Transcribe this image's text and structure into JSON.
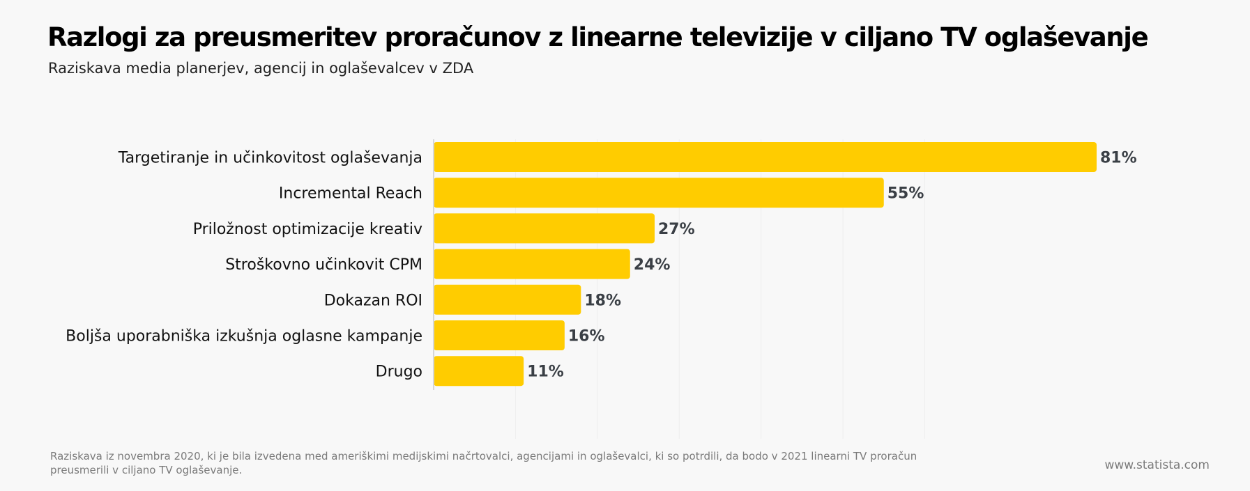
{
  "header": {
    "title": "Razlogi za preusmeritev proračunov z linearne televizije v ciljano TV oglaševanje",
    "subtitle": "Raziskava media planerjev, agencij in oglaševalcev v ZDA"
  },
  "chart_data": {
    "type": "bar",
    "orientation": "horizontal",
    "categories": [
      "Targetiranje in učinkovitost oglaševanja",
      "Incremental Reach",
      "Priložnost optimizacije kreativ",
      "Stroškovno učinkovit CPM",
      "Dokazan ROI",
      "Boljša uporabniška izkušnja oglasne kampanje",
      "Drugo"
    ],
    "values": [
      81,
      55,
      27,
      24,
      18,
      16,
      11
    ],
    "value_labels": [
      "81%",
      "55%",
      "27%",
      "24%",
      "18%",
      "16%",
      "11%"
    ],
    "xlim": [
      0,
      100
    ],
    "bar_color": "#ffcc00",
    "label_color": "#3a3f45",
    "grid": true
  },
  "footer": {
    "note": "Raziskava iz novembra 2020, ki je bila izvedena med ameriškimi medijskimi načrtovalci, agencijami in oglaševalci, ki so potrdili, da bodo v 2021 linearni TV proračun preusmerili v ciljano TV oglaševanje.",
    "source": "www.statista.com"
  }
}
